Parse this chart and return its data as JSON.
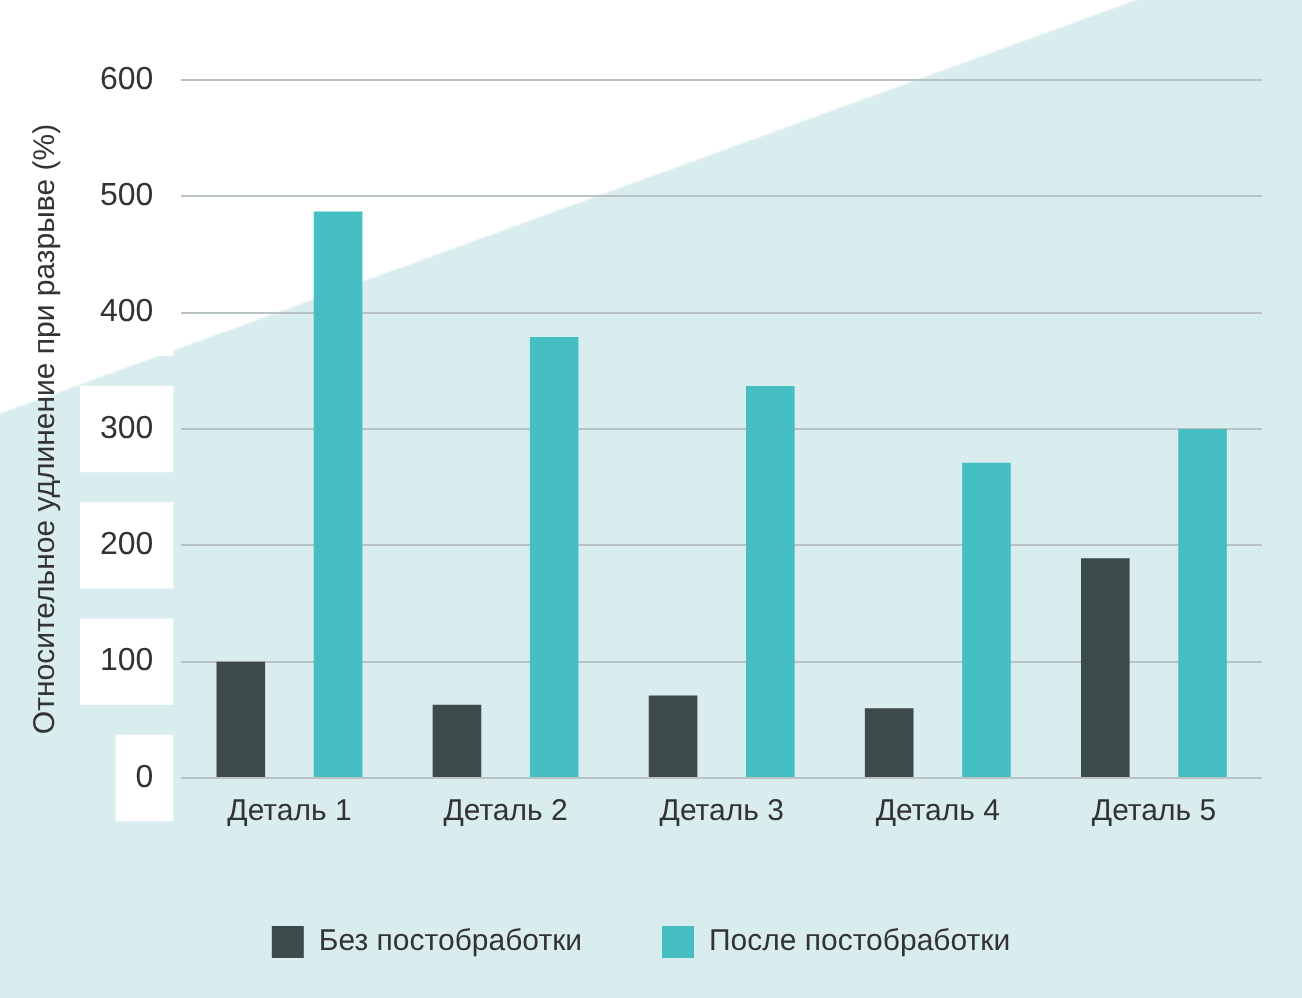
{
  "chart_data": {
    "type": "bar",
    "ylabel": "Относительное удлинение при разрыве (%)",
    "categories": [
      "Деталь 1",
      "Деталь 2",
      "Деталь 3",
      "Деталь 4",
      "Деталь 5"
    ],
    "series": [
      {
        "name": "Без постобработки",
        "color": "#3d4a4b",
        "values": [
          100,
          63,
          71,
          60,
          189
        ]
      },
      {
        "name": "После постобработки",
        "color": "#45bfc4",
        "values": [
          487,
          379,
          337,
          271,
          300
        ]
      }
    ],
    "ylim": [
      0,
      600
    ],
    "yticks": [
      0,
      100,
      200,
      300,
      400,
      500,
      600
    ],
    "grid": "y",
    "legend": "bottom"
  }
}
